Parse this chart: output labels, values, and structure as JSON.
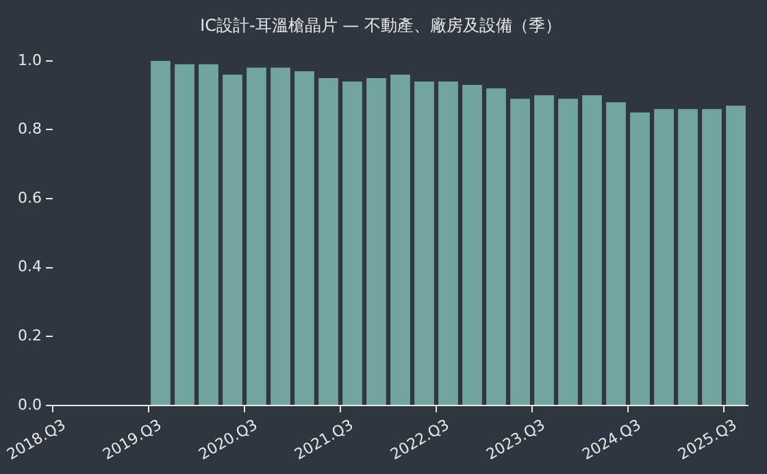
{
  "chart_data": {
    "type": "bar",
    "title": "IC設計-耳溫槍晶片 — 不動產、廠房及設備（季）",
    "categories": [
      "2018.Q3",
      null,
      null,
      null,
      "2019.Q3",
      null,
      null,
      null,
      "2020.Q3",
      null,
      null,
      null,
      "2021.Q3",
      null,
      null,
      null,
      "2022.Q3",
      null,
      null,
      null,
      "2023.Q3",
      null,
      null,
      null,
      "2024.Q3",
      null,
      null,
      null,
      "2025.Q3"
    ],
    "values": [
      null,
      null,
      null,
      null,
      1.0,
      0.99,
      0.99,
      0.96,
      0.98,
      0.98,
      0.97,
      0.95,
      0.94,
      0.95,
      0.96,
      0.94,
      0.94,
      0.93,
      0.92,
      0.89,
      0.9,
      0.89,
      0.9,
      0.88,
      0.85,
      0.86,
      0.86,
      0.86,
      0.87
    ],
    "color": "#72a59e",
    "ylim": [
      0,
      1
    ],
    "yticks": [
      {
        "value": 0,
        "label": "0.0"
      },
      {
        "value": 0.2,
        "label": "0.2"
      },
      {
        "value": 0.4,
        "label": "0.4"
      },
      {
        "value": 0.6,
        "label": "0.6"
      },
      {
        "value": 0.8,
        "label": "0.8"
      },
      {
        "value": 1,
        "label": "1.0"
      }
    ],
    "grid": false,
    "legend": false
  }
}
